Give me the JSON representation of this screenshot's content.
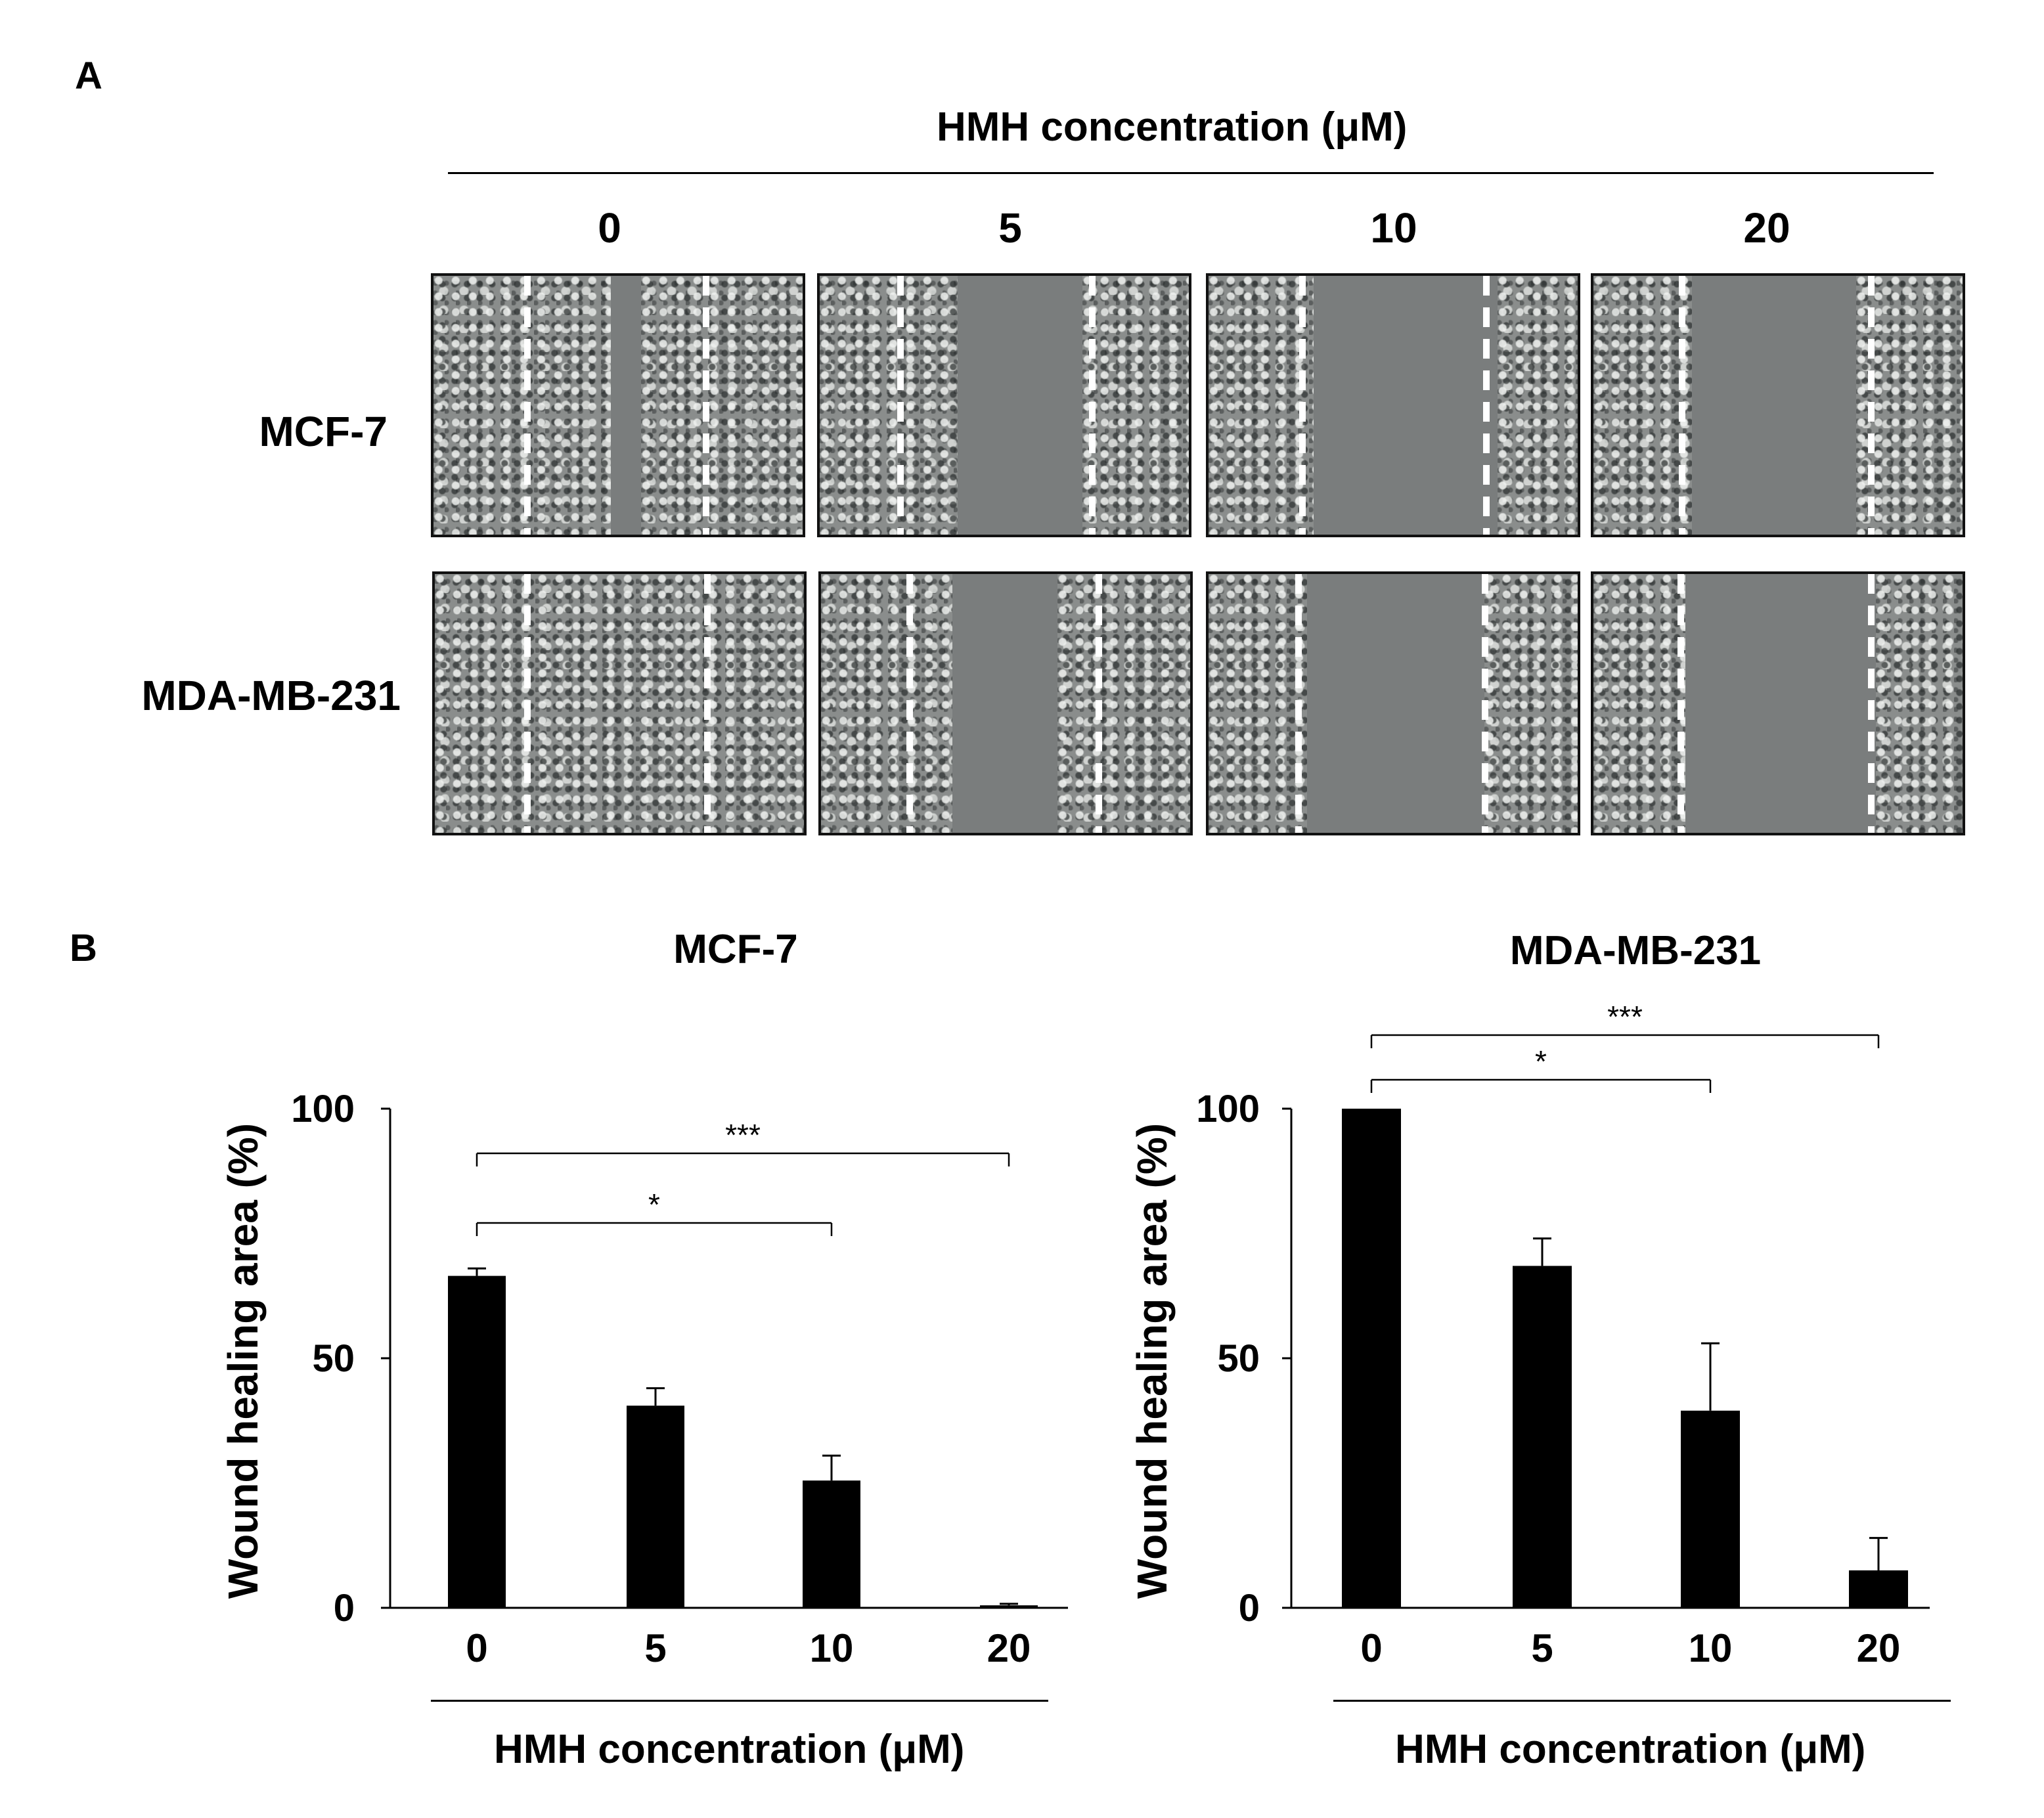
{
  "panel_a": {
    "label": "A",
    "header": "HMH concentration (μM)",
    "columns": [
      "0",
      "5",
      "10",
      "20"
    ],
    "rows": [
      "MCF-7",
      "MDA-MB-231"
    ]
  },
  "panel_b": {
    "label": "B"
  },
  "chart_data": [
    {
      "type": "bar",
      "title": "MCF-7",
      "xlabel": "HMH concentration (μM)",
      "ylabel": "Wound healing area (%)",
      "categories": [
        "0",
        "5",
        "10",
        "20"
      ],
      "values": [
        66.5,
        40.5,
        25.5,
        0.5
      ],
      "errors": [
        1.5,
        3.5,
        5,
        0.3
      ],
      "ylim": [
        0,
        100
      ],
      "yticks": [
        "0",
        "50",
        "100"
      ],
      "bar_color": "#000000",
      "significance": [
        {
          "from": "0",
          "to": "10",
          "label": "*"
        },
        {
          "from": "0",
          "to": "20",
          "label": "***"
        }
      ]
    },
    {
      "type": "bar",
      "title": "MDA-MB-231",
      "xlabel": "HMH concentration (μM)",
      "ylabel": "Wound healing area (%)",
      "categories": [
        "0",
        "5",
        "10",
        "20"
      ],
      "values": [
        100,
        68.5,
        39.5,
        7.5
      ],
      "errors": [
        0,
        5.5,
        13.5,
        6.5
      ],
      "ylim": [
        0,
        100
      ],
      "yticks": [
        "0",
        "50",
        "100"
      ],
      "bar_color": "#000000",
      "significance": [
        {
          "from": "0",
          "to": "10",
          "label": "*"
        },
        {
          "from": "0",
          "to": "20",
          "label": "***"
        }
      ]
    }
  ]
}
